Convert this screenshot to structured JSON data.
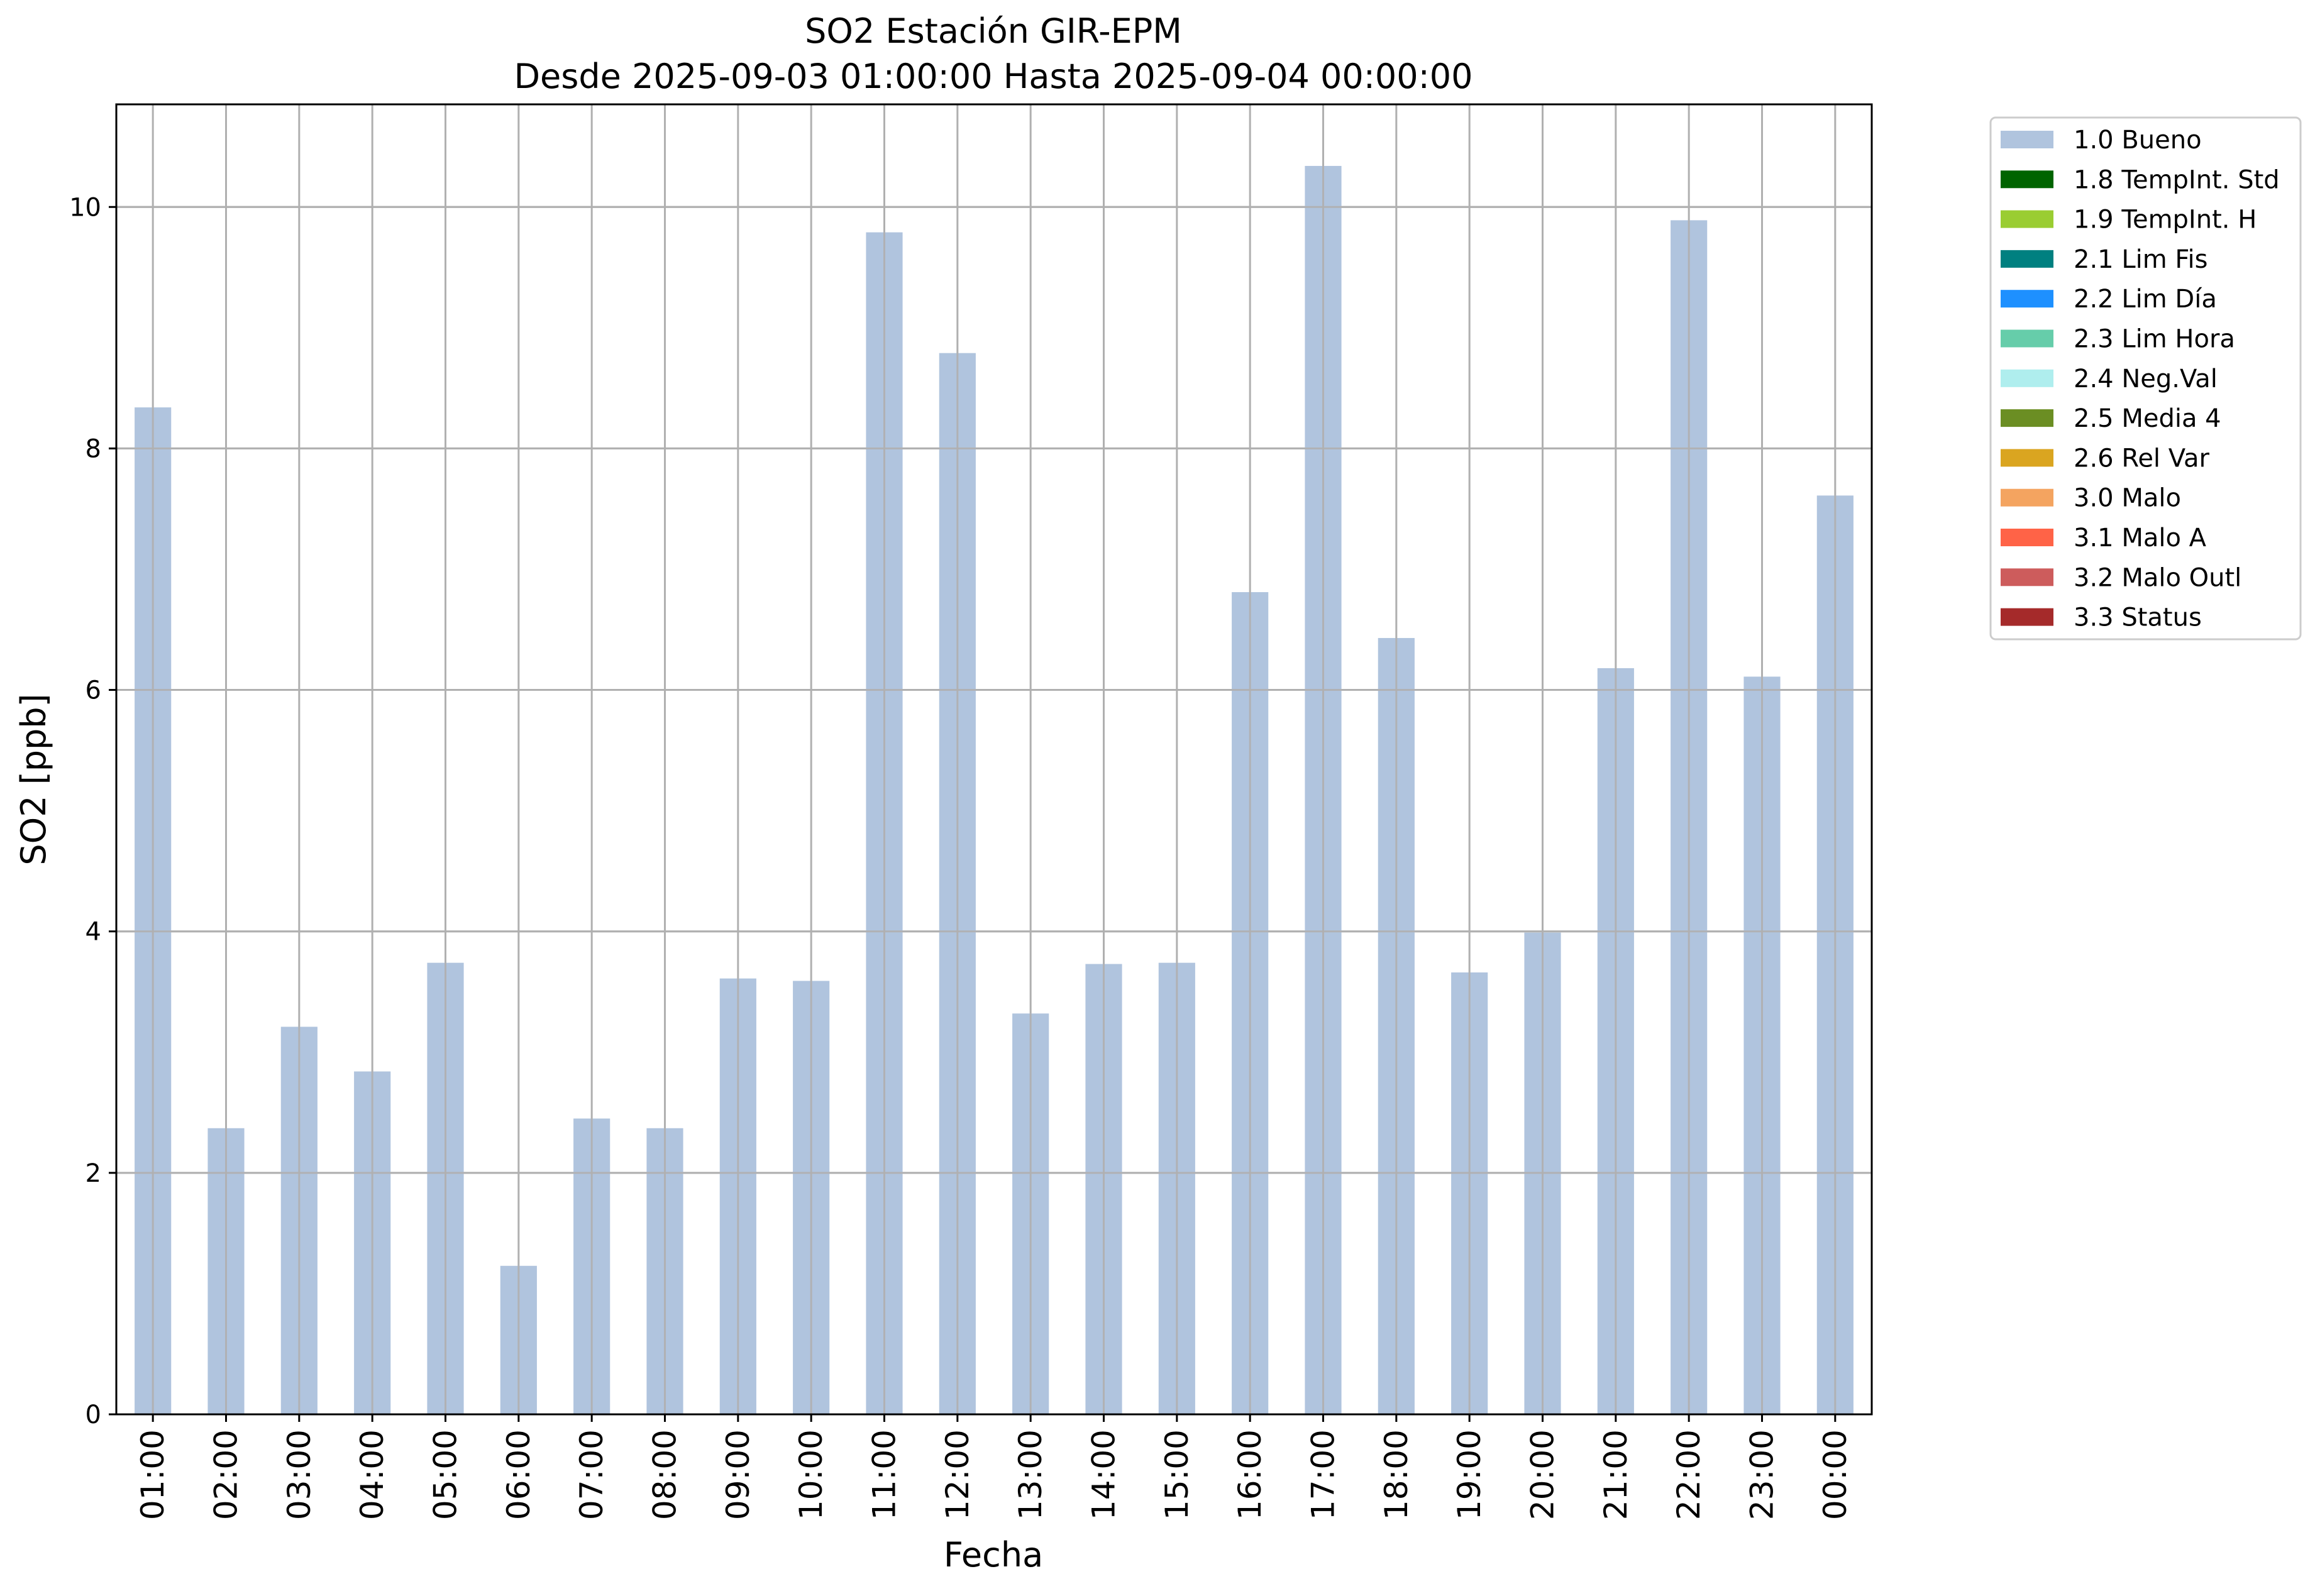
{
  "chart_data": {
    "type": "bar",
    "title_line1": "SO2 Estación GIR-EPM",
    "title_line2": "Desde 2025-09-03 01:00:00 Hasta 2025-09-04 00:00:00",
    "xlabel": "Fecha",
    "ylabel": "SO2 [ppb]",
    "ylim": [
      0,
      10.85
    ],
    "yticks": [
      0,
      2,
      4,
      6,
      8,
      10
    ],
    "grid": true,
    "legend_position": "outside-top-right",
    "categories": [
      "01:00",
      "02:00",
      "03:00",
      "04:00",
      "05:00",
      "06:00",
      "07:00",
      "08:00",
      "09:00",
      "10:00",
      "11:00",
      "12:00",
      "13:00",
      "14:00",
      "15:00",
      "16:00",
      "17:00",
      "18:00",
      "19:00",
      "20:00",
      "21:00",
      "22:00",
      "23:00",
      "00:00"
    ],
    "series": [
      {
        "name": "1.0 Bueno",
        "color": "#b0c4de",
        "values": [
          8.34,
          2.37,
          3.21,
          2.84,
          3.74,
          1.23,
          2.45,
          2.37,
          3.61,
          3.59,
          9.79,
          8.79,
          3.32,
          3.73,
          3.74,
          6.81,
          10.34,
          6.43,
          3.66,
          3.99,
          6.18,
          9.89,
          6.11,
          7.61
        ]
      }
    ],
    "legend": [
      {
        "label": "1.0 Bueno",
        "color": "#b0c4de"
      },
      {
        "label": "1.8 TempInt. Std",
        "color": "#006400"
      },
      {
        "label": "1.9 TempInt. H",
        "color": "#9acd32"
      },
      {
        "label": "2.1 Lim Fis",
        "color": "#008080"
      },
      {
        "label": "2.2 Lim Día",
        "color": "#1e90ff"
      },
      {
        "label": "2.3 Lim Hora",
        "color": "#66cdaa"
      },
      {
        "label": "2.4 Neg.Val",
        "color": "#afeeee"
      },
      {
        "label": "2.5 Media 4",
        "color": "#6b8e23"
      },
      {
        "label": "2.6 Rel Var",
        "color": "#daa520"
      },
      {
        "label": "3.0 Malo",
        "color": "#f4a460"
      },
      {
        "label": "3.1 Malo A",
        "color": "#ff6347"
      },
      {
        "label": "3.2 Malo Outl",
        "color": "#cd5c5c"
      },
      {
        "label": "3.3 Status",
        "color": "#a52a2a"
      }
    ]
  }
}
